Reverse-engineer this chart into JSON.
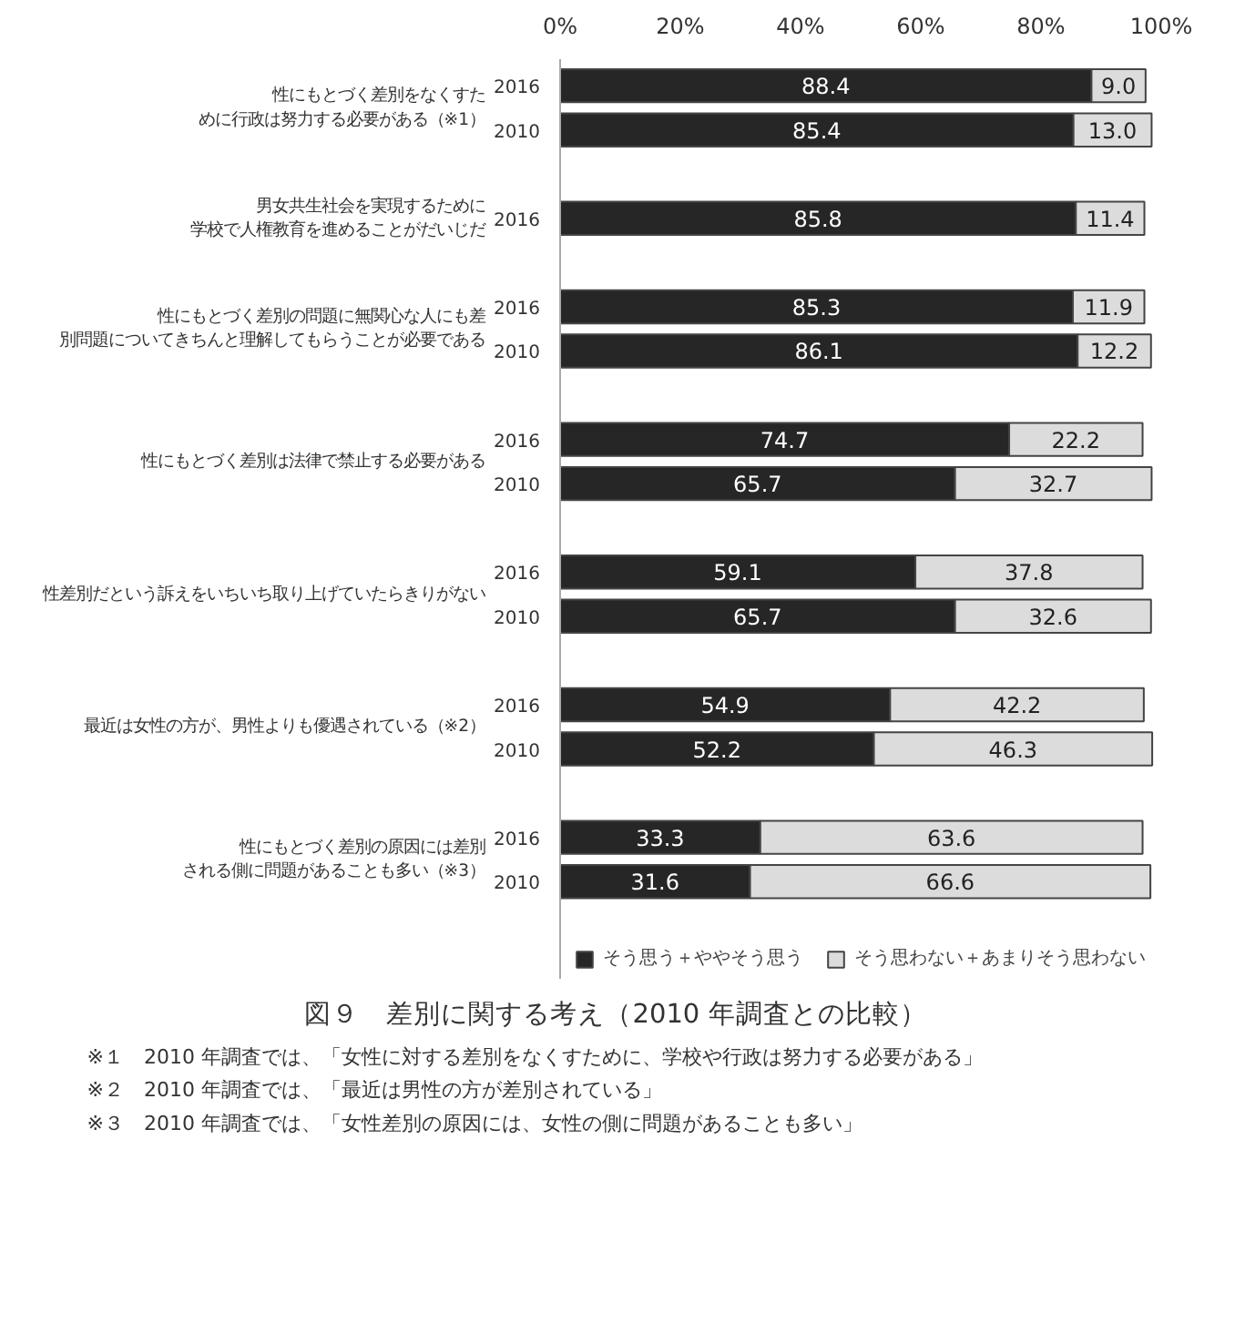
{
  "chart_data": {
    "type": "bar",
    "orientation": "horizontal",
    "stacked": true,
    "title": "図９　差別に関する考え（2010 年調査との比較）",
    "categories": [
      "2016",
      "2010",
      null,
      "2016",
      null,
      "2016",
      "2010",
      null,
      "2016",
      "2010",
      null,
      "2016",
      "2010",
      null,
      "2016",
      "2010",
      null,
      "2016",
      "2010"
    ],
    "series": [
      {
        "name": "そう思う＋ややそう思う",
        "color": "#262626",
        "values": [
          88.4,
          85.4,
          null,
          85.8,
          null,
          85.3,
          86.1,
          null,
          74.7,
          65.7,
          null,
          59.1,
          65.7,
          null,
          54.9,
          52.2,
          null,
          33.3,
          31.6
        ]
      },
      {
        "name": "そう思わない＋あまりそう思わない",
        "color": "#dcdcdc",
        "value_labels": [
          "9.0",
          "13.0",
          null,
          "11.4",
          null,
          "11.9",
          "12.2",
          null,
          "22.2",
          "32.7",
          null,
          "37.8",
          "32.6",
          null,
          "42.2",
          "46.3",
          null,
          "63.6",
          "66.6"
        ],
        "values": [
          9.0,
          13.0,
          null,
          11.4,
          null,
          11.9,
          12.2,
          null,
          22.2,
          32.7,
          null,
          37.8,
          32.6,
          null,
          42.2,
          46.3,
          null,
          63.6,
          66.6
        ]
      }
    ],
    "xlim": [
      0,
      100
    ],
    "xticks": [
      {
        "value": 0,
        "label": "0%"
      },
      {
        "value": 20,
        "label": "20%"
      },
      {
        "value": 40,
        "label": "40%"
      },
      {
        "value": 60,
        "label": "60%"
      },
      {
        "value": 80,
        "label": "80%"
      },
      {
        "value": 100,
        "label": "100%"
      }
    ],
    "data_labels": true,
    "legend": "bottom",
    "grid": false,
    "annotations": [
      "性にもとづく差別をなくすために行政は努力する必要がある（※1）",
      "男女共生社会を実現するために学校で人権教育を進めることがだいじだ",
      "性にもとづく差別の問題に無関心な人にも差別問題についてきちんと理解してもらうことが必要である",
      "性にもとづく差別は法律で禁止する必要がある",
      "性差別だという訴えをいちいち取り上げていたらきりがない",
      "最近は女性の方が、男性よりも優遇されている（※2）",
      "性にもとづく差別の原因には差別される側に問題があることも多い（※3）",
      "※１　2010 年調査では、「女性に対する差別をなくすために、学校や行政は努力する必要がある」",
      "※２　2010 年調査では、「最近は男性の方が差別されている」",
      "※３　2010 年調査では、「女性差別の原因には、女性の側に問題があることも多い」"
    ]
  }
}
